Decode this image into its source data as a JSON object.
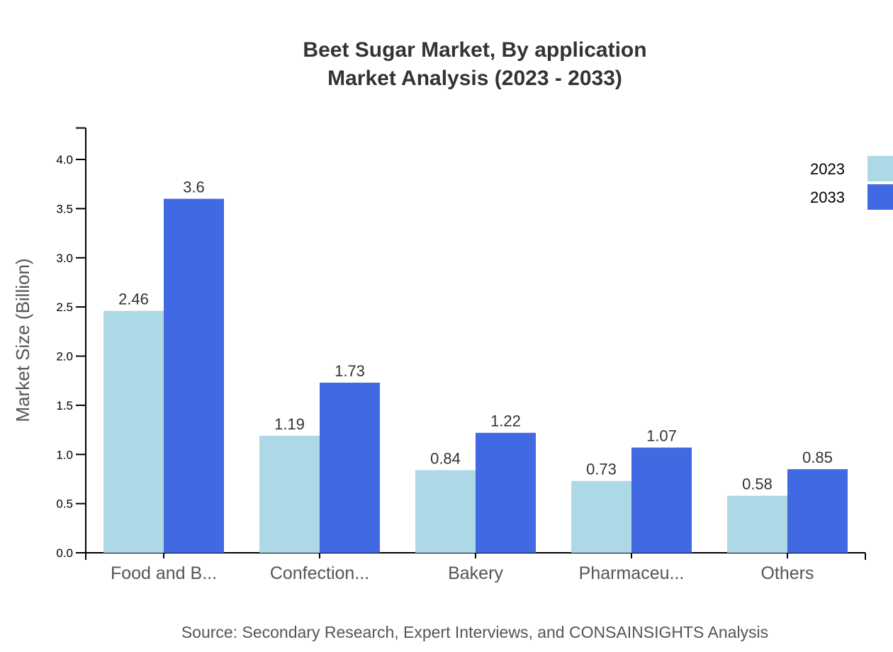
{
  "chart_data": {
    "type": "bar",
    "title": "Beet Sugar Market, By application",
    "subtitle": "Market Analysis (2023 - 2033)",
    "xlabel": "",
    "ylabel": "Market Size (Billion)",
    "ylim": [
      0,
      4.32
    ],
    "yticks": [
      "0.0",
      "0.5",
      "1.0",
      "1.5",
      "2.0",
      "2.5",
      "3.0",
      "3.5",
      "4.0"
    ],
    "categories": [
      "Food and B...",
      "Confection...",
      "Bakery",
      "Pharmaceu...",
      "Others"
    ],
    "series": [
      {
        "name": "2023",
        "color": "#add8e6",
        "values": [
          2.46,
          1.19,
          0.84,
          0.73,
          0.58
        ]
      },
      {
        "name": "2033",
        "color": "#4169e1",
        "values": [
          3.6,
          1.73,
          1.22,
          1.07,
          0.85
        ]
      }
    ],
    "grid": false,
    "legend": "top-right",
    "source": "Source: Secondary Research, Expert Interviews, and CONSAINSIGHTS Analysis"
  }
}
